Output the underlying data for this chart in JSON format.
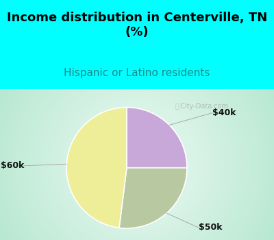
{
  "title": "Income distribution in Centerville, TN\n(%)",
  "subtitle": "Hispanic or Latino residents",
  "title_fontsize": 13,
  "subtitle_fontsize": 11,
  "title_color": "#000000",
  "subtitle_color": "#1a8a8a",
  "top_bg_color": "#00FFFF",
  "slices": [
    {
      "label": "$40k",
      "value": 25,
      "color": "#C8A8D8"
    },
    {
      "label": "$50k",
      "value": 27,
      "color": "#B8C8A0"
    },
    {
      "label": "$60k",
      "value": 48,
      "color": "#EEEE99"
    }
  ],
  "label_fontsize": 9,
  "watermark": "City-Data.com"
}
